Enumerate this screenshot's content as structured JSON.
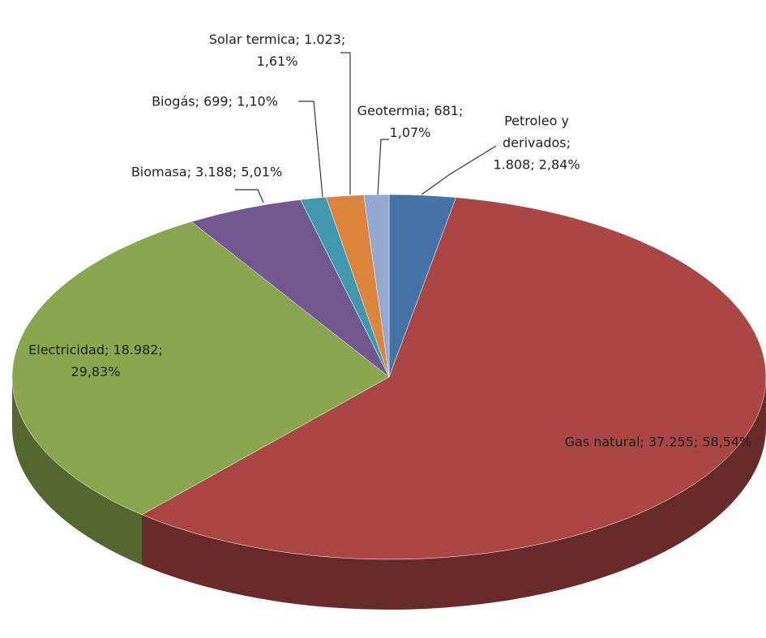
{
  "chart_data": {
    "type": "pie",
    "labels": [
      "Petroleo y derivados; 1.808; 2,84%",
      "Gas natural; 37.255; 58,54%",
      "Electricidad; 18.982; 29,83%",
      "Biomasa; 3.188; 5,01%",
      "Biogás; 699; 1,10%",
      "Solar termica; 1.023; 1,61%",
      "Geotermia; 681; 1,07%"
    ],
    "values": [
      1808,
      37255,
      18982,
      3188,
      699,
      1023,
      681
    ],
    "colors": [
      "#4572a7",
      "#aa4643",
      "#89a54e",
      "#71588f",
      "#4198af",
      "#db843d",
      "#93a9cf"
    ]
  }
}
